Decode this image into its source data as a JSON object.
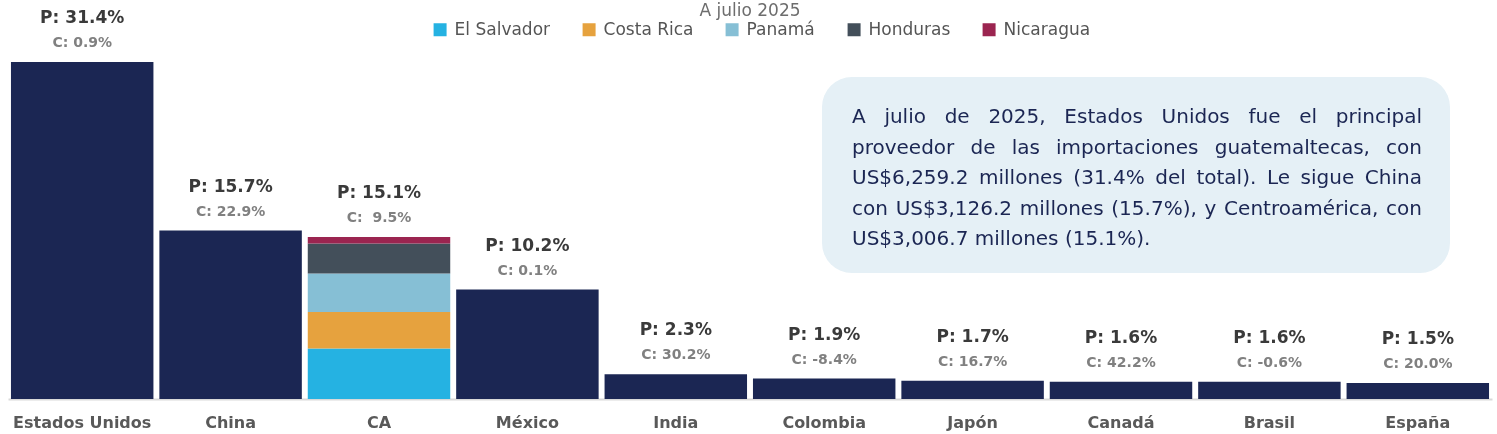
{
  "chart_data": {
    "type": "bar",
    "title": "A julio 2025",
    "categories": [
      "Estados Unidos",
      "China",
      "CA",
      "México",
      "India",
      "Colombia",
      "Japón",
      "Canadá",
      "Brasil",
      "España"
    ],
    "series": [
      {
        "color": "#1b2653",
        "values": [
          31.4,
          15.7,
          null,
          10.2,
          2.3,
          1.9,
          1.7,
          1.6,
          1.6,
          1.5
        ],
        "value_labels": [
          "P: 31.4%",
          "P: 15.7%",
          null,
          "P: 10.2%",
          "P: 2.3%",
          "P: 1.9%",
          "P: 1.7%",
          "P: 1.6%",
          "P: 1.6%",
          "P: 1.5%"
        ]
      },
      {
        "name": "El Salvador",
        "color": "#25b2e2",
        "values": [
          null,
          null,
          4.7,
          null,
          null,
          null,
          null,
          null,
          null,
          null
        ]
      },
      {
        "name": "Costa Rica",
        "color": "#e6a23e",
        "values": [
          null,
          null,
          3.4,
          null,
          null,
          null,
          null,
          null,
          null,
          null
        ]
      },
      {
        "name": "Panamá",
        "color": "#86bfd5",
        "values": [
          null,
          null,
          3.6,
          null,
          null,
          null,
          null,
          null,
          null,
          null
        ]
      },
      {
        "name": "Honduras",
        "color": "#434f5a",
        "values": [
          null,
          null,
          2.8,
          null,
          null,
          null,
          null,
          null,
          null,
          null
        ]
      },
      {
        "name": "Nicaragua",
        "color": "#9b2550",
        "values": [
          null,
          null,
          0.6,
          null,
          null,
          null,
          null,
          null,
          null,
          null
        ]
      }
    ],
    "stacked": true,
    "totals": [
      null,
      null,
      "P: 15.1%",
      null,
      null,
      null,
      null,
      null,
      null,
      null
    ],
    "annotations": [
      {
        "text": "C: 0.9%",
        "x": "Estados Unidos",
        "y": 31.4
      },
      {
        "text": "C: 22.9%",
        "x": "China",
        "y": 15.7
      },
      {
        "text": "C:  9.5%",
        "x": "CA",
        "y": 15.1
      },
      {
        "text": "C: 0.1%",
        "x": "México",
        "y": 10.2
      },
      {
        "text": "C: 30.2%",
        "x": "India",
        "y": 2.3
      },
      {
        "text": "C: -8.4%",
        "x": "Colombia",
        "y": 1.9
      },
      {
        "text": "C: 16.7%",
        "x": "Japón",
        "y": 1.7
      },
      {
        "text": "C: 42.2%",
        "x": "Canadá",
        "y": 1.6
      },
      {
        "text": "C: -0.6%",
        "x": "Brasil",
        "y": 1.6
      },
      {
        "text": "C: 20.0%",
        "x": "España",
        "y": 1.5
      },
      "A julio de 2025, Estados Unidos fue el principal proveedor de las importaciones guatemaltecas, con US$6,259.2 millones (31.4% del total). Le sigue China con US$3,126.2 millones (15.7%), y Centroamérica, con US$3,006.7 millones (15.1%)."
    ],
    "legend": "top",
    "tick_labels": "x"
  }
}
